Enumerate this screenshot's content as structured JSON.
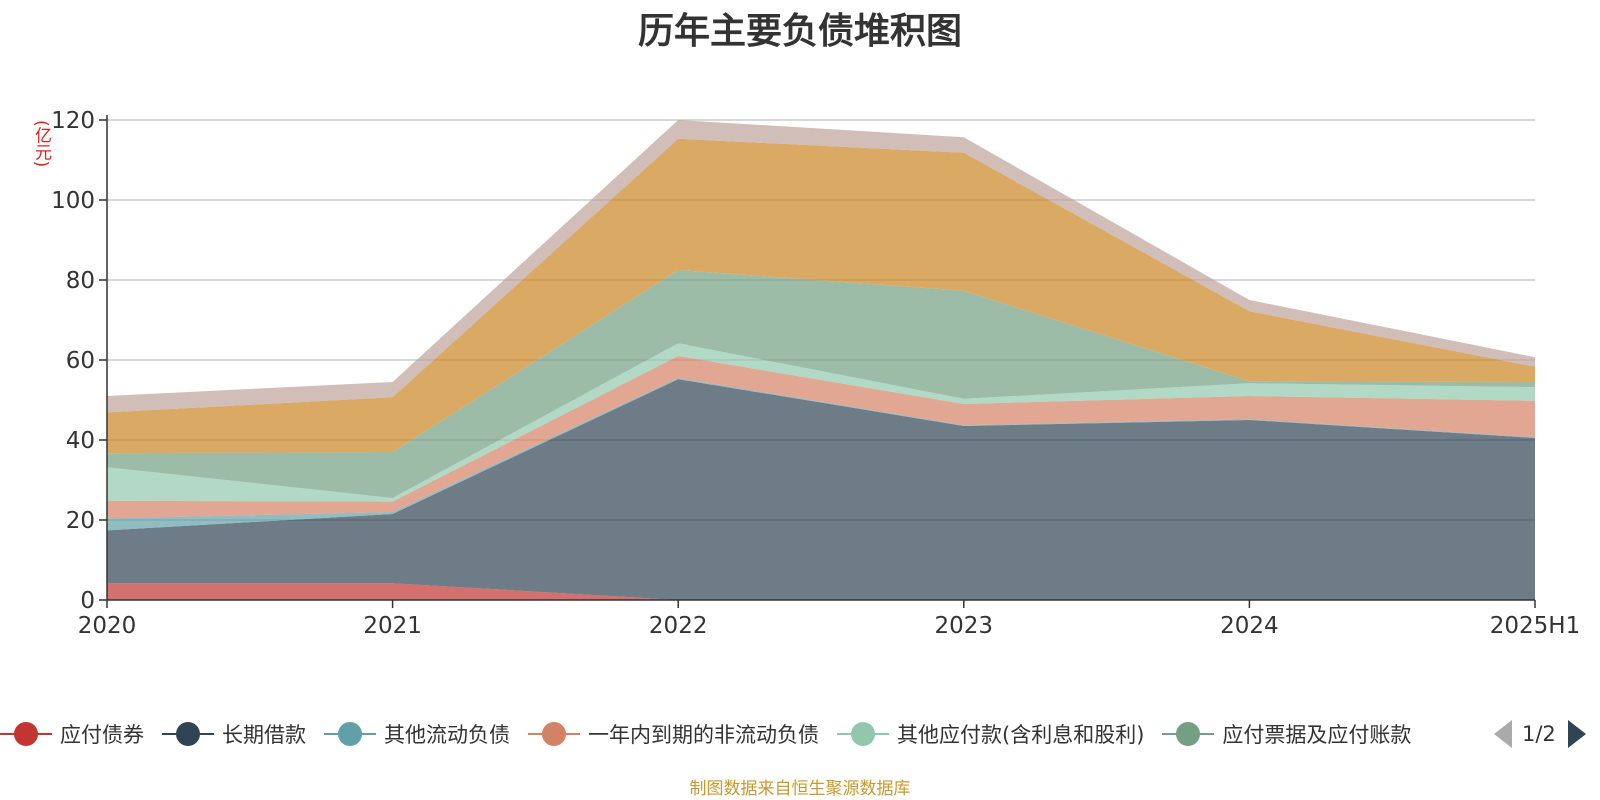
{
  "chart_data": {
    "type": "area",
    "stacked": true,
    "title": "历年主要负债堆积图",
    "ylabel": "(亿元)",
    "categories": [
      "2020",
      "2021",
      "2022",
      "2023",
      "2024",
      "2025H1"
    ],
    "ylim": [
      0,
      120
    ],
    "yticks": [
      0,
      20,
      40,
      60,
      80,
      100,
      120
    ],
    "grid": true,
    "series": [
      {
        "name": "应付债券",
        "color": "#c23531",
        "values": [
          4.2,
          4.2,
          0,
          0,
          0,
          0
        ]
      },
      {
        "name": "长期借款",
        "color": "#2f4554",
        "values": [
          13.2,
          17.3,
          55.2,
          43.5,
          45,
          40.5
        ]
      },
      {
        "name": "其他流动负债",
        "color": "#61a0a8",
        "values": [
          3.0,
          0.5,
          0.3,
          0.2,
          0.2,
          0.2
        ]
      },
      {
        "name": "一年内到期的非流动负债",
        "color": "#d48265",
        "values": [
          4.4,
          2.6,
          5.5,
          5.3,
          5.8,
          9.1
        ]
      },
      {
        "name": "其他应付款(含利息和股利)",
        "color": "#91c7ae",
        "values": [
          8.4,
          0.9,
          3.2,
          1.3,
          3.2,
          3.4
        ]
      },
      {
        "name": "应付票据及应付账款",
        "color": "#749f83",
        "values": [
          3.5,
          11.5,
          18.3,
          27.0,
          0.5,
          1.3
        ]
      },
      {
        "name": "",
        "color": "#ca8622",
        "values": [
          10.2,
          13.7,
          32.8,
          34.5,
          17.5,
          3.8
        ]
      },
      {
        "name": "",
        "color": "#bda29a",
        "values": [
          4.1,
          3.8,
          4.7,
          3.9,
          2.8,
          2.4
        ]
      }
    ]
  },
  "legend": {
    "items": [
      {
        "label": "应付债券",
        "color": "#c23531"
      },
      {
        "label": "长期借款",
        "color": "#2f4554"
      },
      {
        "label": "其他流动负债",
        "color": "#61a0a8"
      },
      {
        "label": "一年内到期的非流动负债",
        "color": "#d48265"
      },
      {
        "label": "其他应付款(含利息和股利)",
        "color": "#91c7ae"
      },
      {
        "label": "应付票据及应付账款",
        "color": "#749f83"
      }
    ],
    "page": "1/2"
  },
  "source": "制图数据来自恒生聚源数据库"
}
